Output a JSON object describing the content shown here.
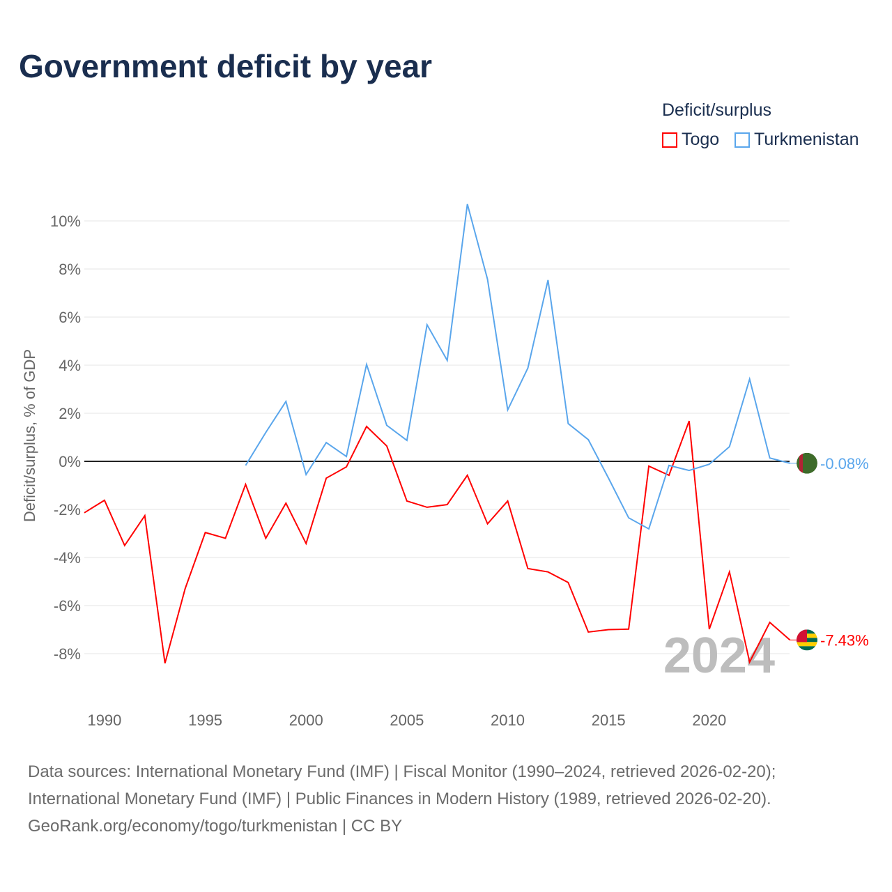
{
  "title": "Government deficit by year",
  "legend": {
    "title": "Deficit/surplus",
    "items": [
      {
        "name": "Togo",
        "color": "#ff0000"
      },
      {
        "name": "Turkmenistan",
        "color": "#5aa6ec"
      }
    ]
  },
  "year_watermark": "2024",
  "footer": [
    "Data sources: International Monetary Fund (IMF) | Fiscal Monitor (1990–2024, retrieved 2026-02-20);",
    "International Monetary Fund (IMF) | Public Finances in Modern History (1989, retrieved 2026-02-20).",
    "GeoRank.org/economy/togo/turkmenistan | CC BY"
  ],
  "chart_data": {
    "type": "line",
    "title": "Government deficit by year",
    "xlabel": "",
    "ylabel": "Deficit/surplus, % of GDP",
    "xlim": [
      1989,
      2024
    ],
    "ylim": [
      -10,
      11
    ],
    "xticks": [
      1990,
      1995,
      2000,
      2005,
      2010,
      2015,
      2020
    ],
    "yticks": [
      {
        "v": 10,
        "label": "10%"
      },
      {
        "v": 8,
        "label": "8%"
      },
      {
        "v": 6,
        "label": "6%"
      },
      {
        "v": 4,
        "label": "4%"
      },
      {
        "v": 2,
        "label": "2%"
      },
      {
        "v": 0,
        "label": "0%"
      },
      {
        "v": -2,
        "label": "-2%"
      },
      {
        "v": -4,
        "label": "-4%"
      },
      {
        "v": -6,
        "label": "-6%"
      },
      {
        "v": -8,
        "label": "-8%"
      }
    ],
    "series": [
      {
        "name": "Togo",
        "color": "#ff0000",
        "end_label": "-7.43%",
        "x": [
          1989,
          1990,
          1991,
          1992,
          1993,
          1994,
          1995,
          1996,
          1997,
          1998,
          1999,
          2000,
          2001,
          2002,
          2003,
          2004,
          2005,
          2006,
          2007,
          2008,
          2009,
          2010,
          2011,
          2012,
          2013,
          2014,
          2015,
          2016,
          2017,
          2018,
          2019,
          2020,
          2021,
          2022,
          2023,
          2024
        ],
        "values": [
          -2.14,
          -1.62,
          -3.5,
          -2.26,
          -8.4,
          -5.3,
          -2.96,
          -3.2,
          -0.96,
          -3.2,
          -1.74,
          -3.42,
          -0.7,
          -0.23,
          1.45,
          0.64,
          -1.65,
          -1.91,
          -1.8,
          -0.58,
          -2.6,
          -1.65,
          -4.46,
          -4.6,
          -5.04,
          -7.1,
          -7.0,
          -6.98,
          -0.2,
          -0.58,
          1.68,
          -6.98,
          -4.6,
          -8.35,
          -6.7,
          -7.43
        ]
      },
      {
        "name": "Turkmenistan",
        "color": "#5aa6ec",
        "end_label": "-0.08%",
        "x": [
          1997,
          1998,
          1999,
          2000,
          2001,
          2002,
          2003,
          2004,
          2005,
          2006,
          2007,
          2008,
          2009,
          2010,
          2011,
          2012,
          2013,
          2014,
          2015,
          2016,
          2017,
          2018,
          2019,
          2020,
          2021,
          2022,
          2023,
          2024
        ],
        "values": [
          -0.17,
          1.2,
          2.49,
          -0.55,
          0.78,
          0.2,
          4.03,
          1.5,
          0.87,
          5.68,
          4.2,
          10.7,
          7.57,
          2.14,
          3.88,
          7.54,
          1.57,
          0.9,
          -0.7,
          -2.35,
          -2.81,
          -0.17,
          -0.38,
          -0.12,
          0.61,
          3.42,
          0.14,
          -0.08
        ]
      }
    ]
  }
}
